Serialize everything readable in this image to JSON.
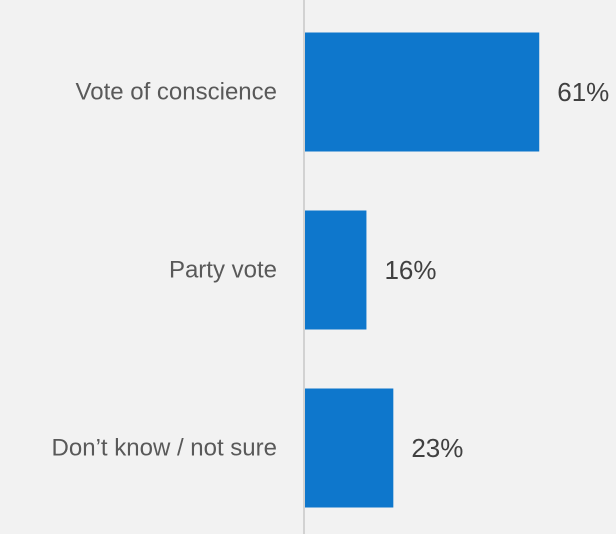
{
  "chart_data": {
    "type": "bar",
    "orientation": "horizontal",
    "categories": [
      "Vote of conscience",
      "Party vote",
      "Don’t know / not sure"
    ],
    "values": [
      61,
      16,
      23
    ],
    "value_labels": [
      "61%",
      "16%",
      "23%"
    ],
    "unit": "%",
    "xlim": [
      0,
      100
    ],
    "grid": false,
    "legend": "none"
  },
  "colors": {
    "background": "#f2f2f2",
    "bar": "#0e77cc",
    "axis": "#c8c8c8",
    "category_text": "#595959",
    "value_text": "#404040"
  }
}
